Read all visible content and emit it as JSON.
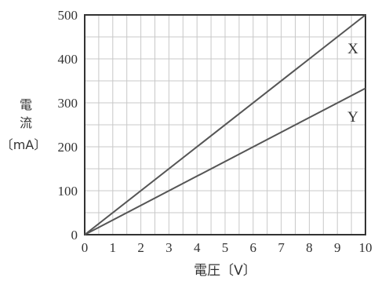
{
  "chart_data": {
    "type": "line",
    "xlabel": "電圧〔V〕",
    "ylabel": [
      "電",
      "流",
      "〔mA〕"
    ],
    "xlim": [
      0,
      10
    ],
    "ylim": [
      0,
      500
    ],
    "x_ticks": [
      0,
      1,
      2,
      3,
      4,
      5,
      6,
      7,
      8,
      9,
      10
    ],
    "y_ticks": [
      0,
      100,
      200,
      300,
      400,
      500
    ],
    "grid": true,
    "series": [
      {
        "name": "X",
        "x": [
          0,
          10
        ],
        "y": [
          0,
          500
        ]
      },
      {
        "name": "Y",
        "x": [
          0,
          10
        ],
        "y": [
          0,
          333
        ]
      }
    ],
    "colors": {
      "line": "#555555",
      "grid": "#c8c8c8",
      "frame": "#333333",
      "text": "#333333"
    }
  }
}
